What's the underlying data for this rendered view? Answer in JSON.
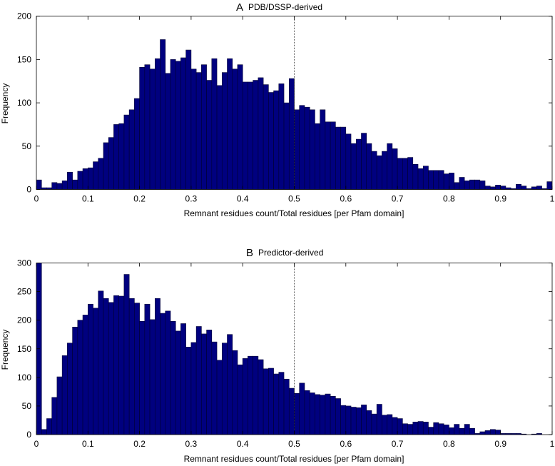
{
  "chart_data": [
    {
      "type": "bar",
      "panel_letter": "A",
      "title": "PDB/DSSP-derived",
      "xlabel": "Remnant residues count/Total residues [per Pfam domain]",
      "ylabel": "Frequency",
      "xlim": [
        0,
        1
      ],
      "ylim": [
        0,
        200
      ],
      "xticks": [
        "0",
        "0.1",
        "0.2",
        "0.3",
        "0.4",
        "0.5",
        "0.6",
        "0.7",
        "0.8",
        "0.9",
        "1"
      ],
      "yticks": [
        "0",
        "50",
        "100",
        "150",
        "200"
      ],
      "bin_width": 0.01,
      "reference_line_x": 0.5,
      "bar_color": "#00007f",
      "values": [
        11,
        2,
        2,
        8,
        7,
        10,
        20,
        11,
        21,
        24,
        25,
        32,
        36,
        54,
        60,
        75,
        76,
        86,
        92,
        105,
        141,
        144,
        139,
        151,
        173,
        134,
        150,
        148,
        152,
        161,
        139,
        135,
        144,
        126,
        151,
        120,
        135,
        151,
        139,
        144,
        124,
        124,
        126,
        129,
        121,
        112,
        114,
        122,
        100,
        128,
        92,
        97,
        95,
        92,
        76,
        92,
        78,
        78,
        72,
        72,
        64,
        53,
        58,
        65,
        53,
        44,
        39,
        44,
        53,
        47,
        36,
        36,
        37,
        29,
        24,
        27,
        22,
        22,
        22,
        18,
        19,
        8,
        14,
        10,
        11,
        11,
        10,
        4,
        3,
        5,
        4,
        2,
        1,
        6,
        4,
        1,
        3,
        4,
        1,
        9
      ]
    },
    {
      "type": "bar",
      "panel_letter": "B",
      "title": "Predictor-derived",
      "xlabel": "Remnant residues count/Total residues [per Pfam domain]",
      "ylabel": "Frequency",
      "xlim": [
        0,
        1
      ],
      "ylim": [
        0,
        300
      ],
      "xticks": [
        "0",
        "0.1",
        "0.2",
        "0.3",
        "0.4",
        "0.5",
        "0.6",
        "0.7",
        "0.8",
        "0.9",
        "1"
      ],
      "yticks": [
        "0",
        "50",
        "100",
        "150",
        "200",
        "250",
        "300"
      ],
      "bin_width": 0.01,
      "reference_line_x": 0.5,
      "bar_color": "#00007f",
      "values": [
        330,
        9,
        28,
        65,
        101,
        138,
        160,
        188,
        200,
        209,
        228,
        221,
        251,
        238,
        231,
        243,
        242,
        280,
        238,
        230,
        198,
        228,
        201,
        238,
        212,
        216,
        198,
        181,
        194,
        153,
        161,
        189,
        176,
        183,
        162,
        130,
        160,
        175,
        147,
        122,
        133,
        137,
        137,
        131,
        115,
        116,
        106,
        109,
        97,
        81,
        72,
        90,
        77,
        73,
        70,
        69,
        71,
        67,
        63,
        51,
        50,
        48,
        47,
        52,
        42,
        36,
        53,
        34,
        35,
        30,
        28,
        19,
        18,
        22,
        23,
        22,
        13,
        21,
        19,
        17,
        12,
        18,
        11,
        18,
        11,
        2,
        5,
        7,
        9,
        8,
        2,
        2,
        2,
        2,
        1,
        0,
        1,
        2,
        0,
        0
      ]
    }
  ]
}
